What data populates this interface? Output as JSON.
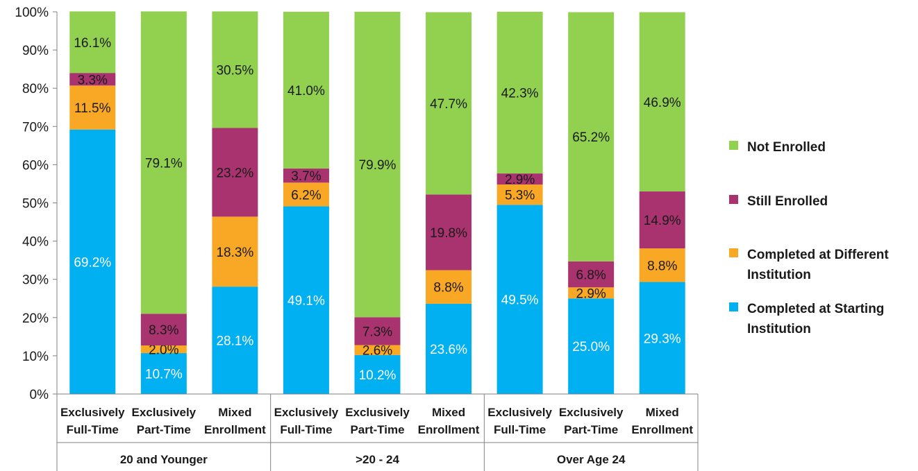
{
  "chart_data": {
    "type": "bar",
    "stacked": true,
    "percent": true,
    "title": "",
    "xlabel": "",
    "ylabel": "",
    "ylim": [
      0,
      100
    ],
    "yticks": [
      "0%",
      "10%",
      "20%",
      "30%",
      "40%",
      "50%",
      "60%",
      "70%",
      "80%",
      "90%",
      "100%"
    ],
    "grid": false,
    "legend_position": "right",
    "groups": [
      {
        "label": "20 and Younger",
        "categories": [
          [
            "Exclusively",
            "Full-Time"
          ],
          [
            "Exclusively",
            "Part-Time"
          ],
          [
            "Mixed",
            "Enrollment"
          ]
        ]
      },
      {
        "label": ">20 - 24",
        "categories": [
          [
            "Exclusively",
            "Full-Time"
          ],
          [
            "Exclusively",
            "Part-Time"
          ],
          [
            "Mixed",
            "Enrollment"
          ]
        ]
      },
      {
        "label": "Over Age 24",
        "categories": [
          [
            "Exclusively",
            "Full-Time"
          ],
          [
            "Exclusively",
            "Part-Time"
          ],
          [
            "Mixed",
            "Enrollment"
          ]
        ]
      }
    ],
    "series": [
      {
        "name": "Completed at Starting Institution",
        "color": "#00b0f0",
        "label_color": "#ffffff",
        "values": [
          69.2,
          10.7,
          28.1,
          49.1,
          10.2,
          23.6,
          49.5,
          25.0,
          29.3
        ],
        "labels": [
          "69.2%",
          "10.7%",
          "28.1%",
          "49.1%",
          "10.2%",
          "23.6%",
          "49.5%",
          "25.0%",
          "29.3%"
        ]
      },
      {
        "name": "Completed at Different Institution",
        "color": "#f9a825",
        "label_color": "#1a1a1a",
        "values": [
          11.5,
          2.0,
          18.3,
          6.2,
          2.6,
          8.8,
          5.3,
          2.9,
          8.8
        ],
        "labels": [
          "11.5%",
          "2.0%",
          "18.3%",
          "6.2%",
          "2.6%",
          "8.8%",
          "5.3%",
          "2.9%",
          "8.8%"
        ]
      },
      {
        "name": "Still Enrolled",
        "color": "#a8336e",
        "label_color": "#1a1a1a",
        "values": [
          3.3,
          8.3,
          23.2,
          3.7,
          7.3,
          19.8,
          2.9,
          6.8,
          14.9
        ],
        "labels": [
          "3.3%",
          "8.3%",
          "23.2%",
          "3.7%",
          "7.3%",
          "19.8%",
          "2.9%",
          "6.8%",
          "14.9%"
        ]
      },
      {
        "name": "Not Enrolled",
        "color": "#92d050",
        "label_color": "#1a1a1a",
        "values": [
          16.1,
          79.1,
          30.5,
          41.0,
          79.9,
          47.7,
          42.3,
          65.2,
          46.9
        ],
        "labels": [
          "16.1%",
          "79.1%",
          "30.5%",
          "41.0%",
          "79.9%",
          "47.7%",
          "42.3%",
          "65.2%",
          "46.9%"
        ]
      }
    ],
    "legend": [
      "Not Enrolled",
      "Still Enrolled",
      "Completed at Different Institution",
      "Completed at Starting Institution"
    ]
  }
}
